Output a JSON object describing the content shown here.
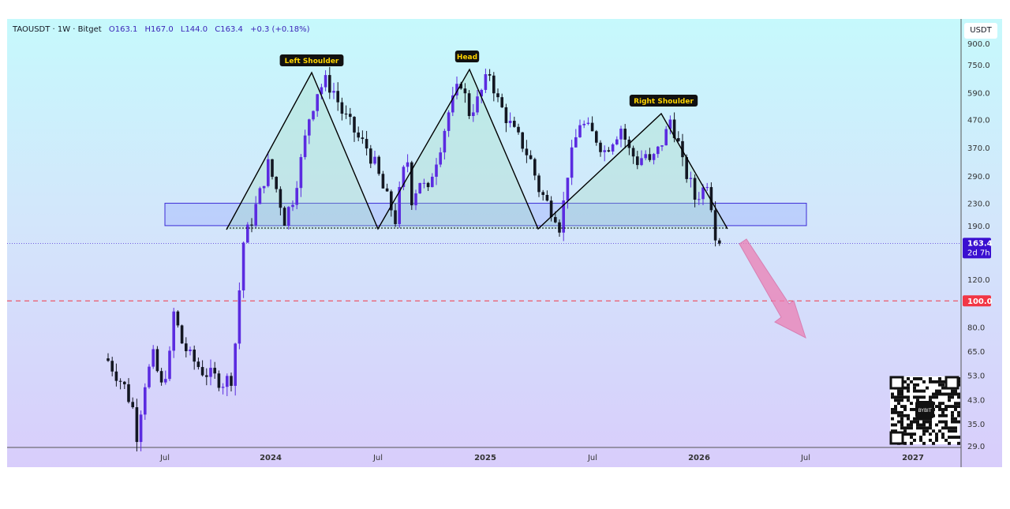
{
  "header": {
    "symbol": "TAOUSDT · 1W · Bitget",
    "open": "O163.1",
    "high": "H167.0",
    "low": "L144.0",
    "close": "C163.4",
    "change": "+0.3 (+0.18%)"
  },
  "currency_button": "USDT",
  "chart_data": {
    "type": "candlestick",
    "title": "TAOUSDT · 1W · Bitget",
    "yscale": "log",
    "ylim": [
      29,
      900
    ],
    "y_ticks": [
      "900.0",
      "750.0",
      "590.0",
      "470.0",
      "370.0",
      "290.0",
      "230.0",
      "190.0",
      "120.0",
      "80.0",
      "65.0",
      "53.0",
      "43.0",
      "35.0",
      "29.0"
    ],
    "x_ticks": [
      "Jul",
      "2024",
      "Jul",
      "2025",
      "Jul",
      "2026",
      "Jul",
      "2027"
    ],
    "current_price": {
      "label": "163.4",
      "countdown": "2d 7h"
    },
    "alert_line": {
      "value": 100.0,
      "label": "100.0"
    },
    "weekly_close_keypoints": [
      [
        0,
        60
      ],
      [
        4,
        48
      ],
      [
        6,
        40
      ],
      [
        7,
        32
      ],
      [
        9,
        50
      ],
      [
        11,
        62
      ],
      [
        13,
        48
      ],
      [
        15,
        62
      ],
      [
        16,
        90
      ],
      [
        18,
        70
      ],
      [
        20,
        62
      ],
      [
        23,
        55
      ],
      [
        26,
        52
      ],
      [
        28,
        50
      ],
      [
        30,
        52
      ],
      [
        31,
        70
      ],
      [
        32,
        110
      ],
      [
        33,
        165
      ],
      [
        35,
        200
      ],
      [
        37,
        250
      ],
      [
        39,
        320
      ],
      [
        41,
        260
      ],
      [
        42,
        230
      ],
      [
        43,
        200
      ],
      [
        45,
        240
      ],
      [
        47,
        330
      ],
      [
        49,
        480
      ],
      [
        51,
        600
      ],
      [
        53,
        650
      ],
      [
        55,
        600
      ],
      [
        57,
        500
      ],
      [
        59,
        450
      ],
      [
        61,
        400
      ],
      [
        63,
        370
      ],
      [
        65,
        320
      ],
      [
        67,
        260
      ],
      [
        69,
        220
      ],
      [
        70,
        200
      ],
      [
        71,
        250
      ],
      [
        72,
        300
      ],
      [
        73,
        330
      ],
      [
        74,
        240
      ],
      [
        76,
        280
      ],
      [
        78,
        250
      ],
      [
        79,
        300
      ],
      [
        81,
        380
      ],
      [
        83,
        500
      ],
      [
        85,
        600
      ],
      [
        86,
        650
      ],
      [
        88,
        500
      ],
      [
        90,
        550
      ],
      [
        92,
        650
      ],
      [
        93,
        700
      ],
      [
        95,
        550
      ],
      [
        97,
        480
      ],
      [
        99,
        420
      ],
      [
        101,
        380
      ],
      [
        103,
        330
      ],
      [
        105,
        260
      ],
      [
        107,
        230
      ],
      [
        109,
        210
      ],
      [
        110,
        190
      ],
      [
        111,
        230
      ],
      [
        112,
        300
      ],
      [
        114,
        400
      ],
      [
        115,
        460
      ],
      [
        117,
        430
      ],
      [
        119,
        400
      ],
      [
        121,
        360
      ],
      [
        123,
        400
      ],
      [
        125,
        440
      ],
      [
        127,
        360
      ],
      [
        129,
        330
      ],
      [
        131,
        350
      ],
      [
        132,
        320
      ],
      [
        134,
        360
      ],
      [
        136,
        420
      ],
      [
        137,
        470
      ],
      [
        138,
        430
      ],
      [
        139,
        380
      ],
      [
        140,
        320
      ],
      [
        142,
        270
      ],
      [
        143,
        240
      ],
      [
        145,
        260
      ],
      [
        146,
        280
      ],
      [
        147,
        230
      ],
      [
        148,
        180
      ],
      [
        149,
        163
      ]
    ],
    "annotations": [
      "Left Shoulder",
      "Head",
      "Right Shoulder"
    ],
    "neckline_zone": [
      190,
      230
    ]
  },
  "qr_logo": "BYBIT",
  "colors": {
    "up": "#5b2be0",
    "down": "#131722",
    "alert": "#f23645",
    "price_label": "#3a0fd0",
    "arrow": "#ec7fb4"
  }
}
